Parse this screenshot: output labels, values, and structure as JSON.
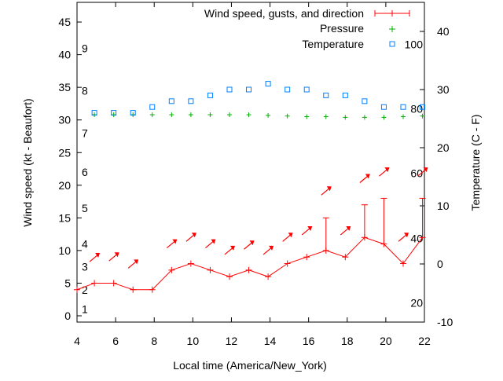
{
  "chart_data": {
    "type": "line",
    "xlabel": "Local time (America/New_York)",
    "ylabel": "Wind speed (kt - Beaufort)",
    "y2label": "Temperature (C - F)",
    "xlim": [
      4,
      22
    ],
    "ylim": [
      -1,
      48
    ],
    "y2lim": [
      -10,
      45
    ],
    "xticks": [
      4,
      6,
      8,
      10,
      12,
      14,
      16,
      18,
      20,
      22
    ],
    "yticks": [
      0,
      5,
      10,
      15,
      20,
      25,
      30,
      35,
      40,
      45
    ],
    "y2ticks": [
      -10,
      0,
      10,
      20,
      30,
      40
    ],
    "beaufort_labels": [
      {
        "label": "1",
        "y": 1
      },
      {
        "label": "2",
        "y": 4
      },
      {
        "label": "3",
        "y": 7.5
      },
      {
        "label": "4",
        "y": 11
      },
      {
        "label": "5",
        "y": 16.5
      },
      {
        "label": "6",
        "y": 22
      },
      {
        "label": "7",
        "y": 28
      },
      {
        "label": "8",
        "y": 34.5
      },
      {
        "label": "9",
        "y": 41
      }
    ],
    "fahrenheit_labels": [
      {
        "label": "20",
        "y2": -6.7
      },
      {
        "label": "40",
        "y2": 4.4
      },
      {
        "label": "60",
        "y2": 15.6
      },
      {
        "label": "80",
        "y2": 26.7
      },
      {
        "label": "100",
        "y2": 37.8
      }
    ],
    "legend": {
      "position": "top-right",
      "entries": [
        "Wind speed, gusts, and direction",
        "Pressure",
        "Temperature"
      ]
    },
    "series": [
      {
        "name": "Wind speed, gusts, and direction",
        "color": "#ff0000",
        "x": [
          4,
          4.9,
          5.9,
          6.9,
          7.9,
          8.9,
          9.9,
          10.9,
          11.9,
          12.9,
          13.9,
          14.9,
          15.9,
          16.9,
          17.9,
          18.9,
          19.9,
          20.9,
          21.9
        ],
        "values": [
          4,
          5,
          5,
          4,
          4,
          7,
          8,
          7,
          6,
          7,
          6,
          8,
          9,
          10,
          9,
          12,
          11,
          8,
          12
        ],
        "gusts": [
          null,
          null,
          null,
          null,
          null,
          null,
          null,
          null,
          null,
          null,
          null,
          null,
          null,
          15,
          null,
          17,
          18,
          null,
          18
        ],
        "direction_arrows": [
          {
            "x": 4.9,
            "y": 8.9
          },
          {
            "x": 5.9,
            "y": 9.0
          },
          {
            "x": 6.9,
            "y": 7.9
          },
          {
            "x": 8.9,
            "y": 11
          },
          {
            "x": 9.9,
            "y": 12
          },
          {
            "x": 10.9,
            "y": 11
          },
          {
            "x": 11.9,
            "y": 10
          },
          {
            "x": 12.9,
            "y": 10.8
          },
          {
            "x": 13.9,
            "y": 10
          },
          {
            "x": 14.9,
            "y": 12
          },
          {
            "x": 15.9,
            "y": 13
          },
          {
            "x": 16.9,
            "y": 19.1
          },
          {
            "x": 17.9,
            "y": 13
          },
          {
            "x": 18.9,
            "y": 21
          },
          {
            "x": 19.9,
            "y": 22
          },
          {
            "x": 20.9,
            "y": 12
          },
          {
            "x": 21.9,
            "y": 22
          }
        ]
      },
      {
        "name": "Pressure",
        "color": "#00b000",
        "x": [
          4.9,
          5.9,
          6.9,
          7.9,
          8.9,
          9.9,
          10.9,
          11.9,
          12.9,
          13.9,
          14.9,
          15.9,
          16.9,
          17.9,
          18.9,
          19.9,
          20.9,
          21.9
        ],
        "values": [
          30.8,
          30.8,
          30.8,
          30.8,
          30.8,
          30.8,
          30.8,
          30.8,
          30.8,
          30.7,
          30.6,
          30.5,
          30.5,
          30.4,
          30.4,
          30.4,
          30.5,
          30.6
        ]
      },
      {
        "name": "Temperature",
        "color": "#0080ff",
        "axis": "y2",
        "x": [
          4.9,
          5.9,
          6.9,
          7.9,
          8.9,
          9.9,
          10.9,
          11.9,
          12.9,
          13.9,
          14.9,
          15.9,
          16.9,
          17.9,
          18.9,
          19.9,
          20.9,
          21.9
        ],
        "values": [
          26,
          26,
          26,
          27,
          28,
          28,
          29,
          30,
          30,
          31,
          30,
          30,
          29,
          29,
          28,
          27,
          27,
          27
        ]
      }
    ]
  }
}
